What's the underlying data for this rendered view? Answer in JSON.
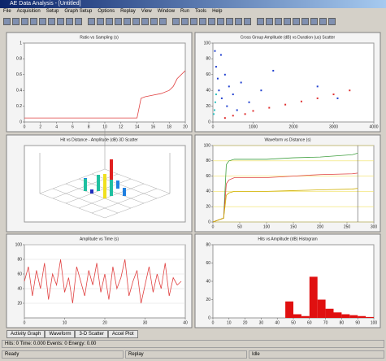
{
  "window": {
    "title": "AE Data Analysis - [Untitled]",
    "menu": [
      "File",
      "Acquisition",
      "Setup",
      "Graph Setup",
      "Options",
      "Replay",
      "View",
      "Window",
      "Run",
      "Tools",
      "Help"
    ]
  },
  "panels": [
    {
      "type": "line",
      "title": "Ratio vs Sampling (s)",
      "x": [
        0,
        2,
        4,
        6,
        8,
        10,
        12,
        14,
        14.5,
        15,
        16,
        17,
        18,
        18.5,
        19,
        20
      ],
      "series": [
        {
          "color": "#e04040",
          "values": [
            0.05,
            0.05,
            0.05,
            0.05,
            0.05,
            0.05,
            0.05,
            0.05,
            0.3,
            0.32,
            0.34,
            0.36,
            0.4,
            0.45,
            0.55,
            0.65
          ]
        }
      ],
      "xlim": [
        0,
        20
      ],
      "ylim": [
        0,
        1
      ],
      "xticks": [
        0,
        2,
        4,
        6,
        8,
        10,
        12,
        14,
        16,
        18,
        20
      ],
      "yticks": [
        0,
        0.2,
        0.4,
        0.6,
        0.8,
        1
      ],
      "grid": false
    },
    {
      "type": "scatter",
      "title": "Cross Group Amplitude (dB) vs Duration (us) Scatter",
      "series": [
        {
          "color": "#2040d0",
          "x": [
            50,
            80,
            120,
            150,
            200,
            220,
            300,
            350,
            400,
            500,
            600,
            700,
            900,
            1200,
            1500,
            2600,
            3100
          ],
          "values": [
            90,
            70,
            55,
            40,
            85,
            30,
            60,
            20,
            45,
            35,
            15,
            50,
            25,
            40,
            65,
            45,
            30
          ]
        },
        {
          "color": "#e03030",
          "x": [
            300,
            500,
            800,
            1000,
            1400,
            1800,
            2200,
            2600,
            3000,
            3400
          ],
          "values": [
            5,
            8,
            10,
            14,
            18,
            22,
            26,
            30,
            35,
            40
          ]
        },
        {
          "color": "#30c0c0",
          "x": [
            20,
            40,
            60,
            80
          ],
          "values": [
            10,
            15,
            25,
            35
          ]
        }
      ],
      "xlim": [
        0,
        4000
      ],
      "ylim": [
        0,
        100
      ],
      "xticks": [
        0,
        1000,
        2000,
        3000,
        4000
      ],
      "yticks": [
        0,
        20,
        40,
        60,
        80,
        100
      ],
      "grid": false
    },
    {
      "type": "scatter3d",
      "title": "Hit vs Distance - Amplitude (dB) 3D Scatter",
      "x": [
        2,
        3,
        4,
        5,
        6,
        6,
        7,
        5,
        4,
        6
      ],
      "y": [
        5,
        6,
        5,
        4,
        5,
        6,
        4,
        3,
        6,
        5
      ],
      "z": [
        2,
        3,
        4,
        3,
        9,
        6,
        2,
        2,
        1,
        4
      ],
      "zlim": [
        0,
        10
      ]
    },
    {
      "type": "line",
      "title": "Waveform vs Distance (s)",
      "x": [
        0,
        20,
        25,
        30,
        40,
        100,
        150,
        200,
        260,
        270,
        280
      ],
      "series": [
        {
          "color": "#40a040",
          "values": [
            0,
            5,
            75,
            80,
            82,
            82,
            84,
            85,
            88,
            90,
            null
          ]
        },
        {
          "color": "#e04040",
          "values": [
            0,
            5,
            50,
            55,
            58,
            58,
            60,
            62,
            63,
            64,
            null
          ]
        },
        {
          "color": "#d0b000",
          "values": [
            0,
            5,
            35,
            38,
            40,
            40,
            41,
            42,
            43,
            44,
            null
          ]
        }
      ],
      "vline": 270,
      "xlim": [
        0,
        300
      ],
      "ylim": [
        0,
        100
      ],
      "xticks": [
        0,
        50,
        100,
        150,
        200,
        250,
        300
      ],
      "yticks": [
        0,
        20,
        40,
        60,
        80,
        100
      ],
      "grid": true,
      "grid_color": "#f0e060"
    },
    {
      "type": "line",
      "title": "Amplitude vs Time (s)",
      "x": [
        0,
        1,
        2,
        3,
        4,
        5,
        6,
        7,
        8,
        9,
        10,
        11,
        12,
        13,
        14,
        15,
        16,
        17,
        18,
        19,
        20,
        21,
        22,
        23,
        24,
        25,
        26,
        27,
        28,
        29,
        30,
        31,
        32,
        33,
        34,
        35,
        36,
        37,
        38,
        39
      ],
      "series": [
        {
          "color": "#e04040",
          "values": [
            50,
            70,
            30,
            65,
            40,
            75,
            25,
            60,
            45,
            80,
            35,
            55,
            20,
            70,
            50,
            30,
            65,
            45,
            75,
            35,
            60,
            25,
            70,
            40,
            55,
            80,
            30,
            50,
            65,
            20,
            45,
            70,
            35,
            60,
            40,
            75,
            30,
            55,
            45,
            50
          ]
        }
      ],
      "xlim": [
        0,
        40
      ],
      "ylim": [
        0,
        100
      ],
      "xticks": [
        0,
        10,
        20,
        30,
        40
      ],
      "yticks": [
        20,
        40,
        60,
        80,
        100
      ],
      "grid": true,
      "grid_color": "#dddddd"
    },
    {
      "type": "histogram",
      "title": "Hits vs Amplitude (dB) Histogram",
      "color": "#e01010",
      "bins": [
        0,
        5,
        10,
        15,
        20,
        25,
        30,
        35,
        40,
        45,
        50,
        55,
        60,
        65,
        70,
        75,
        80,
        85,
        90,
        95,
        100
      ],
      "values": [
        0,
        0,
        0,
        0,
        0,
        0,
        0,
        0,
        0,
        18,
        4,
        2,
        45,
        20,
        10,
        6,
        4,
        3,
        2,
        1
      ],
      "xlim": [
        0,
        100
      ],
      "ylim": [
        0,
        80
      ],
      "xticks": [
        0,
        10,
        20,
        30,
        40,
        50,
        60,
        70,
        80,
        90,
        100
      ],
      "yticks": [
        0,
        20,
        40,
        60,
        80
      ],
      "grid": false
    }
  ],
  "tabs": [
    "Activity Graph",
    "Waveform",
    "3-D Scatter",
    "Accel Plot"
  ],
  "status": [
    "Hits: 0   Time: 0.000   Events: 0   Energy: 0.00",
    "Ready",
    "Replay",
    "Idle"
  ]
}
